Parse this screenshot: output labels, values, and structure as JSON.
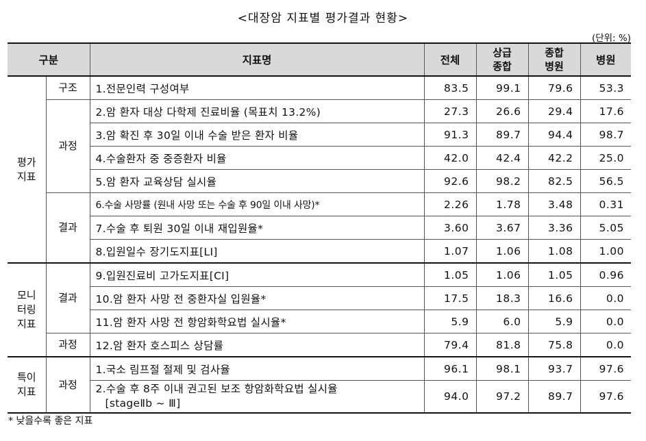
{
  "title": "<대장암 지표별 평가결과 현황>",
  "unit": "(단위: %)",
  "headers": {
    "category": "구분",
    "indicator": "지표명",
    "total": "전체",
    "upper_general_l1": "상급",
    "upper_general_l2": "종합",
    "general_hospital_l1": "종합",
    "general_hospital_l2": "병원",
    "hospital": "병원"
  },
  "groups": {
    "eval": "평가\n지표",
    "monitor": "모니\n터링\n지표",
    "special": "특이\n지표",
    "structure": "구조",
    "process": "과정",
    "result": "결과"
  },
  "rows": [
    {
      "name": "1.전문인력 구성여부",
      "total": "83.5",
      "upper": "99.1",
      "general": "79.6",
      "hospital": "53.3"
    },
    {
      "name": "2.암 환자 대상 다학제 진료비율 (목표치 13.2%)",
      "total": "27.3",
      "upper": "26.6",
      "general": "29.4",
      "hospital": "17.6"
    },
    {
      "name": "3.암 확진 후 30일 이내 수술 받은 환자 비율",
      "total": "91.3",
      "upper": "89.7",
      "general": "94.4",
      "hospital": "98.7"
    },
    {
      "name": "4.수술환자 중 중증환자 비율",
      "total": "42.0",
      "upper": "42.4",
      "general": "42.2",
      "hospital": "25.0"
    },
    {
      "name": "5.암 환자 교육상담 실시율",
      "total": "92.6",
      "upper": "98.2",
      "general": "82.5",
      "hospital": "56.5"
    },
    {
      "name": "6.수술 사망률 (원내 사망 또는 수술 후 90일 이내 사망)*",
      "total": "2.26",
      "upper": "1.78",
      "general": "3.48",
      "hospital": "0.31"
    },
    {
      "name": "7.수술 후 퇴원 30일 이내 재입원율*",
      "total": "3.60",
      "upper": "3.67",
      "general": "3.36",
      "hospital": "5.05"
    },
    {
      "name": "8.입원일수 장기도지표[LI]",
      "total": "1.07",
      "upper": "1.06",
      "general": "1.08",
      "hospital": "1.00"
    },
    {
      "name": "9.입원진료비 고가도지표[CI]",
      "total": "1.05",
      "upper": "1.06",
      "general": "1.05",
      "hospital": "0.96"
    },
    {
      "name": "10.암 환자 사망 전 중환자실 입원율*",
      "total": "17.5",
      "upper": "18.3",
      "general": "16.6",
      "hospital": "0.0"
    },
    {
      "name": "11.암 환자 사망 전 항암화학요법 실시율*",
      "total": "5.9",
      "upper": "6.0",
      "general": "5.9",
      "hospital": "0.0"
    },
    {
      "name": "12.암 환자 호스피스 상담률",
      "total": "79.4",
      "upper": "81.8",
      "general": "75.8",
      "hospital": "0.0"
    },
    {
      "name": "1.국소 림프절 절제 및 검사율",
      "total": "96.1",
      "upper": "98.1",
      "general": "93.7",
      "hospital": "97.6"
    },
    {
      "name": "2.수술 후 8주 이내 권고된 보조 항암화학요법 실시율",
      "name2": "[stageⅡb ~ Ⅲ]",
      "total": "94.0",
      "upper": "97.2",
      "general": "89.7",
      "hospital": "97.6"
    }
  ],
  "footnote": "* 낮을수록 좋은 지표"
}
